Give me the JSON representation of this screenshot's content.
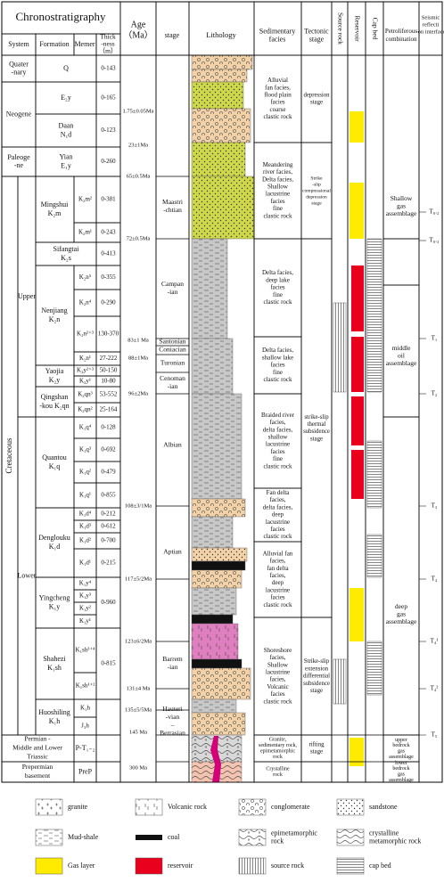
{
  "header": {
    "title": "Chronostratigraphy",
    "system": "System",
    "formation": "Formation",
    "memer": "Memer",
    "thickness": [
      "Thick",
      "-ness",
      "（m）"
    ],
    "age": [
      "Age",
      "（Ma）"
    ],
    "stage": "stage",
    "lithology": "Lithology",
    "facies": [
      "Sedimentary",
      "facies"
    ],
    "tectonic": [
      "Tectonic",
      "stage"
    ],
    "source_rock": "Source rock",
    "reservoir": "Reservoir",
    "cap_bed": "Cap bed",
    "petroliferous": [
      "Petroliferous",
      "combination"
    ],
    "seismic": [
      "Seismic",
      "reflecti",
      "-on interface"
    ]
  },
  "systems": [
    [
      "Quater",
      "-nary"
    ],
    [
      "Neogene"
    ],
    [
      "Paleoge",
      "-ne"
    ],
    [
      "Cretaceous"
    ]
  ],
  "series": [
    "Upper",
    "Lower"
  ],
  "formations": [
    [
      "Q"
    ],
    [
      "E₂y"
    ],
    [
      "Daan",
      "N₁d"
    ],
    [
      "Yian",
      "E₁y"
    ],
    [
      "Mingshui",
      "K₂m"
    ],
    [
      "Sifangtai",
      "K₂s"
    ],
    [
      "Nenjiang",
      "K₂n"
    ],
    [
      "Yaojia",
      "K₂y"
    ],
    [
      "Qingshan",
      "-kou K₂qn"
    ],
    [
      "Quantou",
      "K₁q"
    ],
    [
      "Denglouku",
      "K₁d"
    ],
    [
      "Yingcheng",
      "K₁y"
    ],
    [
      "Shahezi",
      "K₁sh"
    ],
    [
      "Huoshiling",
      "K₁h"
    ],
    [
      "Permian -",
      "Middle and Lower",
      "Triassic"
    ],
    [
      "Prepermian",
      "basement"
    ]
  ],
  "basement_codes": [
    "P-T₁₋₂",
    "PreP"
  ],
  "members": [
    "K₂m²",
    "K₂m¹",
    "K₂n⁵",
    "K₂n⁴",
    "K₂n²⁺³",
    "K₂n¹",
    "K₂y²⁺³",
    "K₂y¹",
    "K₂qn³",
    "K₂qn²",
    "K₁q⁴",
    "K₁q³",
    "K₁q²",
    "K₁q¹",
    "K₁d⁴",
    "K₁d³",
    "K₁d²",
    "K₁d¹",
    "K₁y⁴",
    "K₁y³",
    "K₁y²",
    "K₁y¹",
    "K₁sh³⁺⁴",
    "K₁sh¹⁺²",
    "K₁h",
    "J₃h"
  ],
  "thickness": [
    "0-143",
    "0-165",
    "0-123",
    "0-260",
    "0-381",
    "0-243",
    "0-413",
    "0-355",
    "0-290",
    "130-370",
    "27-222",
    "50-150",
    "10-80",
    "53-552",
    "25-164",
    "0-128",
    "0-692",
    "0-479",
    "0-855",
    "0-212",
    "0-612",
    "0-700",
    "0-215",
    "0-960",
    "0-815"
  ],
  "ages": [
    "1.75±0.05Ma",
    "23±1Ma",
    "65±0.5Ma",
    "72±0.5Ma",
    "83±1 Ma",
    "88±1Ma",
    "96±2Ma",
    "108±3/1Ma",
    "117±5/2Ma",
    "123±6/2Ma",
    "131±4 Ma",
    "135±5/5Ma",
    "145 Ma",
    "300 Ma"
  ],
  "stages": [
    [
      "Maastri",
      "-chtian"
    ],
    [
      "Campan",
      "-ian"
    ],
    [
      "Santonian"
    ],
    [
      "Coniacian"
    ],
    [
      "Turonian"
    ],
    [
      "Cenoman",
      "-ian"
    ],
    [
      "Albian"
    ],
    [
      "Aptian"
    ],
    [
      "Barrem",
      "-ian"
    ],
    [
      "Hauteri",
      "-vian",
      "–",
      "Berrasian"
    ]
  ],
  "facies": [
    [
      "Alluvial",
      "fan facies,",
      "flood plain",
      "facies",
      "coarse",
      "clastic rock"
    ],
    [
      "Meandering",
      "river facies,",
      "Delta facies,",
      "Shallow",
      "lacustrine",
      "facies",
      "fine",
      "clastic rock"
    ],
    [
      "Delta facies,",
      "deep lake",
      "facies",
      "fine",
      "clastic rock"
    ],
    [
      "Delta facies,",
      "shallow lake",
      "facies",
      "fine",
      "clastic rock"
    ],
    [
      "Braided river",
      "facies,",
      "delta facies,",
      "shallow",
      "lacustrine",
      "facies",
      "fine",
      "clastic rock"
    ],
    [
      "Fan delta",
      "facies,",
      "delta facies,",
      "deep",
      "lacustrine",
      "facies",
      "clastic rock"
    ],
    [
      "Alluvial fan",
      "facies,",
      "fan delta",
      "facies,",
      "deep",
      "lacustrine",
      "facies",
      "clastic rock"
    ],
    [
      "Shoreshore",
      "facies,",
      "Shallow",
      "lacustrine",
      "facies,",
      "Volcanic",
      "facies",
      "clastic rock"
    ],
    [
      "Granite,",
      "sedimentary rock,",
      "epimetamorphic",
      "rock"
    ],
    [
      "Crystalline",
      "rock"
    ]
  ],
  "tectonic": [
    [
      "depression",
      "stage"
    ],
    [
      "Strike",
      "-slip",
      "compressional",
      "depression",
      "stage"
    ],
    [
      "strike-slip",
      "thermal",
      "subsidence",
      "stage"
    ],
    [
      "Strike-slip",
      "extension",
      "differential",
      "subsidence",
      "stage"
    ],
    [
      "rifting",
      "stage"
    ]
  ],
  "petroliferous": [
    [
      "Shallow",
      "gas",
      "assemblage"
    ],
    [
      "middle",
      "oil",
      "assemblage"
    ],
    [
      "deep",
      "gas",
      "assemblage"
    ],
    [
      "upper",
      "bedrock",
      "gas",
      "assemblage"
    ],
    [
      "lower",
      "bedrock",
      "gas",
      "assemblage"
    ]
  ],
  "seismic": [
    "T₀.₂",
    "T₀.₃",
    "T₁",
    "T₂",
    "T₃",
    "T₄",
    "T₄¹",
    "T₄²",
    "T₅"
  ],
  "legend": [
    [
      "granite"
    ],
    [
      "Volcanic rock"
    ],
    [
      "conglomerate"
    ],
    [
      "sandstone"
    ],
    [
      "Mud-shale"
    ],
    [
      "coal"
    ],
    [
      "epimetamorphic",
      "rock"
    ],
    [
      "crystalline",
      "metamorphic rock"
    ],
    [
      "Gas layer"
    ],
    [
      "reservoir"
    ],
    [
      "source rock"
    ],
    [
      "cap bed"
    ]
  ]
}
